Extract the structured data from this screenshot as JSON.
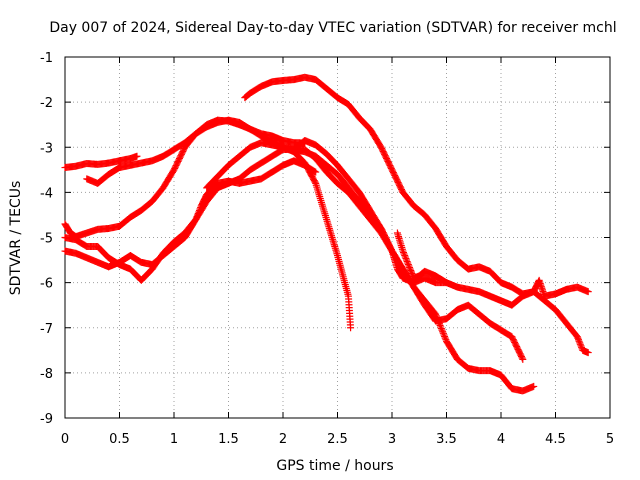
{
  "chart_data": {
    "type": "scatter",
    "title": "Day 007 of 2024, Sidereal Day-to-day VTEC variation (SDTVAR) for receiver mchl",
    "xlabel": "GPS time / hours",
    "ylabel": "SDTVAR / TECUs",
    "xlim": [
      0,
      5
    ],
    "ylim": [
      -9,
      -1
    ],
    "xticks": [
      "0",
      "0.5",
      "1",
      "1.5",
      "2",
      "2.5",
      "3",
      "3.5",
      "4",
      "4.5",
      "5"
    ],
    "yticks": [
      "-1",
      "-2",
      "-3",
      "-4",
      "-5",
      "-6",
      "-7",
      "-8",
      "-9"
    ],
    "grid": true,
    "marker": "+",
    "color": "#ff0000",
    "series": [
      {
        "name": "track-1",
        "points": [
          [
            0.0,
            -3.45
          ],
          [
            0.1,
            -3.42
          ],
          [
            0.2,
            -3.36
          ],
          [
            0.3,
            -3.38
          ],
          [
            0.4,
            -3.35
          ],
          [
            0.5,
            -3.3
          ],
          [
            0.6,
            -3.25
          ],
          [
            0.66,
            -3.2
          ]
        ]
      },
      {
        "name": "track-2",
        "points": [
          [
            0.0,
            -4.7
          ],
          [
            0.05,
            -4.9
          ],
          [
            0.1,
            -4.98
          ],
          [
            0.2,
            -4.9
          ],
          [
            0.3,
            -4.82
          ],
          [
            0.4,
            -4.8
          ],
          [
            0.5,
            -4.75
          ],
          [
            0.6,
            -4.55
          ],
          [
            0.7,
            -4.4
          ],
          [
            0.8,
            -4.2
          ],
          [
            0.9,
            -3.9
          ],
          [
            1.0,
            -3.5
          ],
          [
            1.1,
            -3.0
          ],
          [
            1.2,
            -2.7
          ],
          [
            1.3,
            -2.5
          ],
          [
            1.4,
            -2.4
          ],
          [
            1.5,
            -2.42
          ],
          [
            1.6,
            -2.5
          ],
          [
            1.7,
            -2.6
          ],
          [
            1.8,
            -2.7
          ],
          [
            1.9,
            -2.75
          ],
          [
            2.0,
            -2.85
          ],
          [
            2.1,
            -2.9
          ],
          [
            2.15,
            -2.9
          ],
          [
            2.2,
            -2.92
          ]
        ]
      },
      {
        "name": "track-3",
        "points": [
          [
            0.0,
            -5.3
          ],
          [
            0.1,
            -5.35
          ],
          [
            0.2,
            -5.45
          ],
          [
            0.3,
            -5.55
          ],
          [
            0.4,
            -5.65
          ],
          [
            0.5,
            -5.55
          ],
          [
            0.6,
            -5.4
          ],
          [
            0.7,
            -5.55
          ],
          [
            0.8,
            -5.6
          ],
          [
            0.9,
            -5.4
          ],
          [
            1.0,
            -5.2
          ],
          [
            1.1,
            -5.0
          ],
          [
            1.15,
            -4.8
          ],
          [
            1.2,
            -4.6
          ],
          [
            1.25,
            -4.3
          ],
          [
            1.3,
            -4.05
          ],
          [
            1.4,
            -3.8
          ],
          [
            1.5,
            -3.75
          ],
          [
            1.6,
            -3.8
          ],
          [
            1.7,
            -3.75
          ],
          [
            1.8,
            -3.7
          ],
          [
            1.9,
            -3.55
          ],
          [
            2.0,
            -3.4
          ],
          [
            2.1,
            -3.3
          ],
          [
            2.2,
            -3.4
          ],
          [
            2.3,
            -3.55
          ]
        ]
      },
      {
        "name": "track-4",
        "points": [
          [
            0.2,
            -3.7
          ],
          [
            0.3,
            -3.8
          ],
          [
            0.4,
            -3.6
          ],
          [
            0.5,
            -3.45
          ],
          [
            0.6,
            -3.4
          ],
          [
            0.7,
            -3.35
          ],
          [
            0.8,
            -3.3
          ],
          [
            0.9,
            -3.2
          ],
          [
            1.0,
            -3.05
          ],
          [
            1.1,
            -2.9
          ],
          [
            1.2,
            -2.7
          ],
          [
            1.3,
            -2.55
          ],
          [
            1.4,
            -2.45
          ],
          [
            1.5,
            -2.4
          ],
          [
            1.6,
            -2.45
          ],
          [
            1.7,
            -2.6
          ],
          [
            1.8,
            -2.75
          ],
          [
            1.9,
            -2.9
          ],
          [
            2.0,
            -3.0
          ],
          [
            2.1,
            -3.1
          ],
          [
            2.2,
            -3.35
          ],
          [
            2.3,
            -3.8
          ],
          [
            2.4,
            -4.6
          ],
          [
            2.5,
            -5.4
          ],
          [
            2.6,
            -6.3
          ],
          [
            2.62,
            -7.0
          ]
        ]
      },
      {
        "name": "track-5",
        "points": [
          [
            0.0,
            -5.0
          ],
          [
            0.1,
            -5.05
          ],
          [
            0.2,
            -5.2
          ],
          [
            0.3,
            -5.2
          ],
          [
            0.4,
            -5.45
          ],
          [
            0.5,
            -5.6
          ],
          [
            0.6,
            -5.7
          ],
          [
            0.7,
            -5.95
          ],
          [
            0.8,
            -5.7
          ],
          [
            0.9,
            -5.35
          ],
          [
            1.0,
            -5.1
          ],
          [
            1.1,
            -4.9
          ],
          [
            1.2,
            -4.6
          ],
          [
            1.3,
            -4.2
          ],
          [
            1.4,
            -3.9
          ],
          [
            1.5,
            -3.8
          ],
          [
            1.6,
            -3.7
          ],
          [
            1.7,
            -3.5
          ],
          [
            1.8,
            -3.35
          ],
          [
            1.9,
            -3.2
          ],
          [
            2.0,
            -3.05
          ],
          [
            2.1,
            -3.05
          ],
          [
            2.2,
            -3.05
          ],
          [
            2.3,
            -3.25
          ],
          [
            2.4,
            -3.55
          ],
          [
            2.5,
            -3.8
          ],
          [
            2.6,
            -4.0
          ],
          [
            2.7,
            -4.3
          ],
          [
            2.8,
            -4.6
          ],
          [
            2.9,
            -4.9
          ],
          [
            3.0,
            -5.3
          ],
          [
            3.1,
            -5.7
          ],
          [
            3.2,
            -6.1
          ],
          [
            3.3,
            -6.5
          ],
          [
            3.4,
            -6.85
          ],
          [
            3.5,
            -6.8
          ],
          [
            3.6,
            -6.6
          ],
          [
            3.7,
            -6.5
          ],
          [
            3.8,
            -6.7
          ],
          [
            3.9,
            -6.9
          ],
          [
            4.0,
            -7.05
          ],
          [
            4.1,
            -7.2
          ],
          [
            4.2,
            -7.7
          ]
        ]
      },
      {
        "name": "track-6",
        "points": [
          [
            1.3,
            -3.9
          ],
          [
            1.4,
            -3.65
          ],
          [
            1.5,
            -3.4
          ],
          [
            1.6,
            -3.2
          ],
          [
            1.7,
            -3.0
          ],
          [
            1.8,
            -2.9
          ],
          [
            1.9,
            -2.95
          ],
          [
            2.0,
            -3.0
          ],
          [
            2.1,
            -3.05
          ],
          [
            2.2,
            -2.85
          ],
          [
            2.3,
            -2.95
          ],
          [
            2.4,
            -3.15
          ],
          [
            2.5,
            -3.4
          ],
          [
            2.6,
            -3.7
          ],
          [
            2.7,
            -4.0
          ],
          [
            2.8,
            -4.4
          ],
          [
            2.9,
            -4.8
          ],
          [
            3.0,
            -5.3
          ],
          [
            3.05,
            -5.7
          ],
          [
            3.1,
            -5.9
          ],
          [
            3.2,
            -6.0
          ],
          [
            3.3,
            -5.9
          ],
          [
            3.4,
            -6.0
          ],
          [
            3.5,
            -6.0
          ],
          [
            3.6,
            -6.1
          ],
          [
            3.7,
            -6.15
          ],
          [
            3.8,
            -6.2
          ],
          [
            3.9,
            -6.3
          ],
          [
            4.0,
            -6.4
          ],
          [
            4.1,
            -6.5
          ],
          [
            4.2,
            -6.3
          ],
          [
            4.3,
            -6.2
          ],
          [
            4.35,
            -5.95
          ],
          [
            4.4,
            -6.3
          ],
          [
            4.5,
            -6.25
          ],
          [
            4.6,
            -6.15
          ],
          [
            4.7,
            -6.1
          ],
          [
            4.8,
            -6.2
          ]
        ]
      },
      {
        "name": "track-7",
        "points": [
          [
            2.1,
            -3.05
          ],
          [
            2.2,
            -3.1
          ],
          [
            2.3,
            -3.2
          ],
          [
            2.4,
            -3.4
          ],
          [
            2.5,
            -3.6
          ],
          [
            2.6,
            -3.9
          ],
          [
            2.7,
            -4.2
          ],
          [
            2.8,
            -4.5
          ],
          [
            2.9,
            -4.8
          ],
          [
            3.0,
            -5.3
          ],
          [
            3.1,
            -5.7
          ],
          [
            3.2,
            -6.1
          ],
          [
            3.3,
            -6.4
          ],
          [
            3.4,
            -6.7
          ],
          [
            3.5,
            -7.3
          ],
          [
            3.6,
            -7.7
          ],
          [
            3.7,
            -7.9
          ],
          [
            3.8,
            -7.95
          ],
          [
            3.9,
            -7.95
          ],
          [
            4.0,
            -8.05
          ],
          [
            4.1,
            -8.35
          ],
          [
            4.2,
            -8.4
          ],
          [
            4.3,
            -8.3
          ]
        ]
      },
      {
        "name": "track-8",
        "points": [
          [
            1.65,
            -1.9
          ],
          [
            1.7,
            -1.8
          ],
          [
            1.8,
            -1.65
          ],
          [
            1.9,
            -1.55
          ],
          [
            2.0,
            -1.52
          ],
          [
            2.1,
            -1.5
          ],
          [
            2.2,
            -1.45
          ],
          [
            2.3,
            -1.5
          ],
          [
            2.4,
            -1.7
          ],
          [
            2.5,
            -1.9
          ],
          [
            2.6,
            -2.05
          ],
          [
            2.7,
            -2.35
          ],
          [
            2.8,
            -2.6
          ],
          [
            2.9,
            -3.0
          ],
          [
            3.0,
            -3.5
          ],
          [
            3.1,
            -4.0
          ],
          [
            3.2,
            -4.3
          ],
          [
            3.3,
            -4.5
          ],
          [
            3.4,
            -4.8
          ],
          [
            3.5,
            -5.2
          ],
          [
            3.6,
            -5.5
          ],
          [
            3.7,
            -5.7
          ],
          [
            3.8,
            -5.65
          ],
          [
            3.9,
            -5.75
          ],
          [
            4.0,
            -6.0
          ],
          [
            4.1,
            -6.1
          ],
          [
            4.2,
            -6.25
          ],
          [
            4.3,
            -6.2
          ],
          [
            4.4,
            -6.4
          ],
          [
            4.5,
            -6.6
          ],
          [
            4.6,
            -6.9
          ],
          [
            4.7,
            -7.2
          ],
          [
            4.75,
            -7.5
          ],
          [
            4.8,
            -7.55
          ]
        ]
      },
      {
        "name": "track-9",
        "points": [
          [
            3.05,
            -4.9
          ],
          [
            3.1,
            -5.3
          ],
          [
            3.15,
            -5.6
          ],
          [
            3.2,
            -5.9
          ],
          [
            3.25,
            -5.85
          ],
          [
            3.3,
            -5.75
          ],
          [
            3.4,
            -5.85
          ],
          [
            3.5,
            -6.0
          ]
        ]
      }
    ]
  }
}
